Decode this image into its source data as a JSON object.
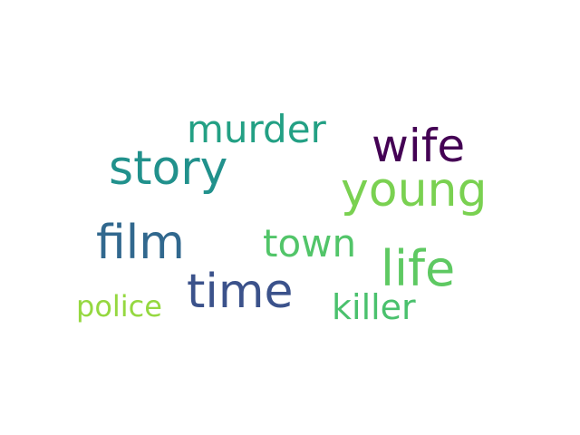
{
  "words": [
    {
      "text": "wife",
      "color": "#440154"
    },
    {
      "text": "young",
      "color": "#7ad151"
    },
    {
      "text": "story",
      "color": "#21918c"
    },
    {
      "text": "murder",
      "color": "#23a084"
    },
    {
      "text": "film",
      "color": "#31688e"
    },
    {
      "text": "town",
      "color": "#52c569"
    },
    {
      "text": "time",
      "color": "#3b528b"
    },
    {
      "text": "life",
      "color": "#5ec962"
    },
    {
      "text": "killer",
      "color": "#4ac16d"
    },
    {
      "text": "police",
      "color": "#95d840"
    }
  ]
}
